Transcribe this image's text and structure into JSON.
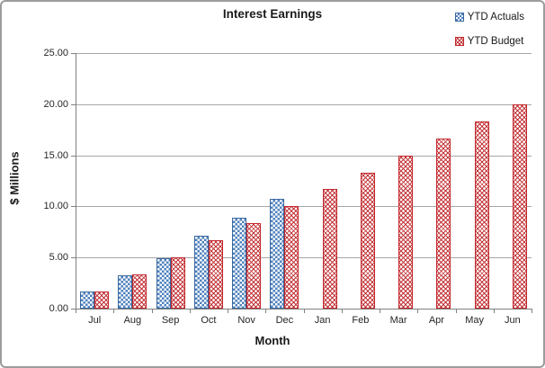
{
  "chart_data": {
    "type": "bar",
    "title": "Interest Earnings",
    "xlabel": "Month",
    "ylabel": "$ Millions",
    "categories": [
      "Jul",
      "Aug",
      "Sep",
      "Oct",
      "Nov",
      "Dec",
      "Jan",
      "Feb",
      "Mar",
      "Apr",
      "May",
      "Jun"
    ],
    "series": [
      {
        "name": "YTD Actuals",
        "pattern": "checker",
        "color": "#4F81BD",
        "border_color": "#38689F",
        "values": [
          1.7,
          3.3,
          4.9,
          7.1,
          8.9,
          10.7,
          null,
          null,
          null,
          null,
          null,
          null
        ]
      },
      {
        "name": "YTD Budget",
        "pattern": "weave",
        "color": "#C4393C",
        "border_color": "#C2262B",
        "values": [
          1.67,
          3.33,
          5.0,
          6.67,
          8.33,
          10.0,
          11.67,
          13.33,
          15.0,
          16.67,
          18.33,
          20.0
        ]
      }
    ],
    "ylim": [
      0,
      25
    ],
    "ytick_interval": 5,
    "ytick_labels": [
      "0.00",
      "5.00",
      "10.00",
      "15.00",
      "20.00",
      "25.00"
    ],
    "grid": true,
    "legend_position": "top-right"
  },
  "style": {
    "grid_color": "#A6A6A6",
    "axis_color": "#808080",
    "background": "#FFFFFF",
    "frame_border": "#9C9C9C"
  }
}
